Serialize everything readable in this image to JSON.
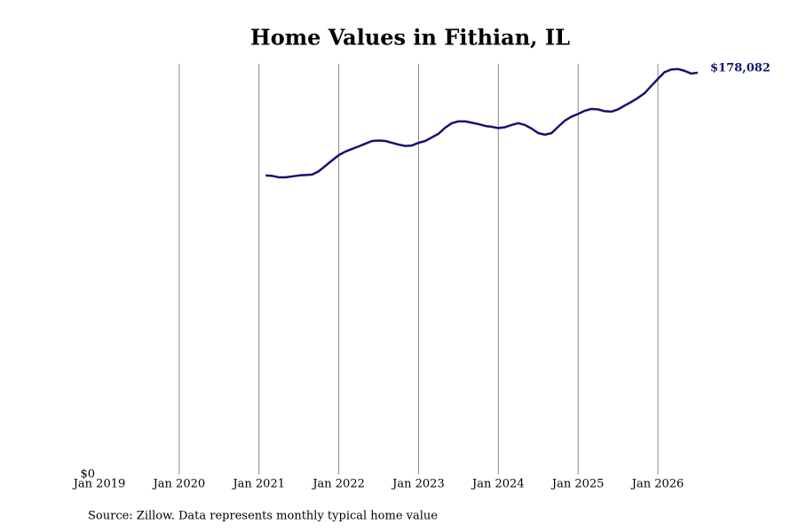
{
  "chart_data": {
    "type": "line",
    "title": "Home Values in Fithian, IL",
    "source": "Source: Zillow. Data represents monthly typical home value",
    "x": [
      "2021-02",
      "2021-03",
      "2021-04",
      "2021-05",
      "2021-06",
      "2021-07",
      "2021-08",
      "2021-09",
      "2021-10",
      "2021-11",
      "2021-12",
      "2022-01",
      "2022-02",
      "2022-03",
      "2022-04",
      "2022-05",
      "2022-06",
      "2022-07",
      "2022-08",
      "2022-09",
      "2022-10",
      "2022-11",
      "2022-12",
      "2023-01",
      "2023-02",
      "2023-03",
      "2023-04",
      "2023-05",
      "2023-06",
      "2023-07",
      "2023-08",
      "2023-09",
      "2023-10",
      "2023-11",
      "2023-12",
      "2024-01",
      "2024-02",
      "2024-03",
      "2024-04",
      "2024-05",
      "2024-06",
      "2024-07",
      "2024-08",
      "2024-09",
      "2024-10",
      "2024-11",
      "2024-12",
      "2025-01",
      "2025-02",
      "2025-03",
      "2025-04",
      "2025-05",
      "2025-06",
      "2025-07",
      "2025-08",
      "2025-09",
      "2025-10",
      "2025-11",
      "2025-12",
      "2026-01",
      "2026-02",
      "2026-03",
      "2026-04",
      "2026-05",
      "2026-06",
      "2026-07"
    ],
    "series": [
      {
        "name": "Typical home value",
        "color": "#14146e",
        "values": [
          132500,
          132300,
          131700,
          131700,
          132100,
          132500,
          132700,
          132900,
          134400,
          136800,
          139200,
          141500,
          143100,
          144300,
          145400,
          146600,
          147800,
          148000,
          147800,
          147000,
          146200,
          145600,
          145800,
          147000,
          147800,
          149400,
          151000,
          153700,
          155700,
          156500,
          156500,
          155900,
          155300,
          154500,
          154100,
          153500,
          153900,
          154900,
          155700,
          154900,
          153300,
          151300,
          150600,
          151300,
          154100,
          156800,
          158600,
          159800,
          161200,
          162000,
          161800,
          161000,
          160800,
          161800,
          163500,
          165100,
          166900,
          169000,
          172200,
          175300,
          178300,
          179500,
          179700,
          178900,
          177700,
          178082
        ],
        "value_labels": [
          null,
          null,
          null,
          null,
          null,
          null,
          null,
          null,
          null,
          null,
          null,
          null,
          null,
          null,
          null,
          null,
          null,
          null,
          null,
          null,
          null,
          null,
          null,
          null,
          null,
          null,
          null,
          null,
          null,
          null,
          null,
          null,
          null,
          null,
          null,
          null,
          null,
          null,
          null,
          null,
          null,
          null,
          null,
          null,
          null,
          null,
          null,
          null,
          null,
          null,
          null,
          null,
          null,
          null,
          null,
          null,
          null,
          null,
          null,
          null,
          null,
          null,
          null,
          null,
          null,
          "$178,082"
        ]
      }
    ],
    "xlim": [
      "2019-01",
      "2026-07"
    ],
    "xticks": [
      {
        "value": "2019-01",
        "label": "Jan 2019"
      },
      {
        "value": "2020-01",
        "label": "Jan 2020"
      },
      {
        "value": "2021-01",
        "label": "Jan 2021"
      },
      {
        "value": "2022-01",
        "label": "Jan 2022"
      },
      {
        "value": "2023-01",
        "label": "Jan 2023"
      },
      {
        "value": "2024-01",
        "label": "Jan 2024"
      },
      {
        "value": "2025-01",
        "label": "Jan 2025"
      },
      {
        "value": "2026-01",
        "label": "Jan 2026"
      }
    ],
    "ylim": [
      0,
      182000
    ],
    "yticks": [
      {
        "value": 0,
        "label": "$0"
      }
    ],
    "grid": true
  }
}
